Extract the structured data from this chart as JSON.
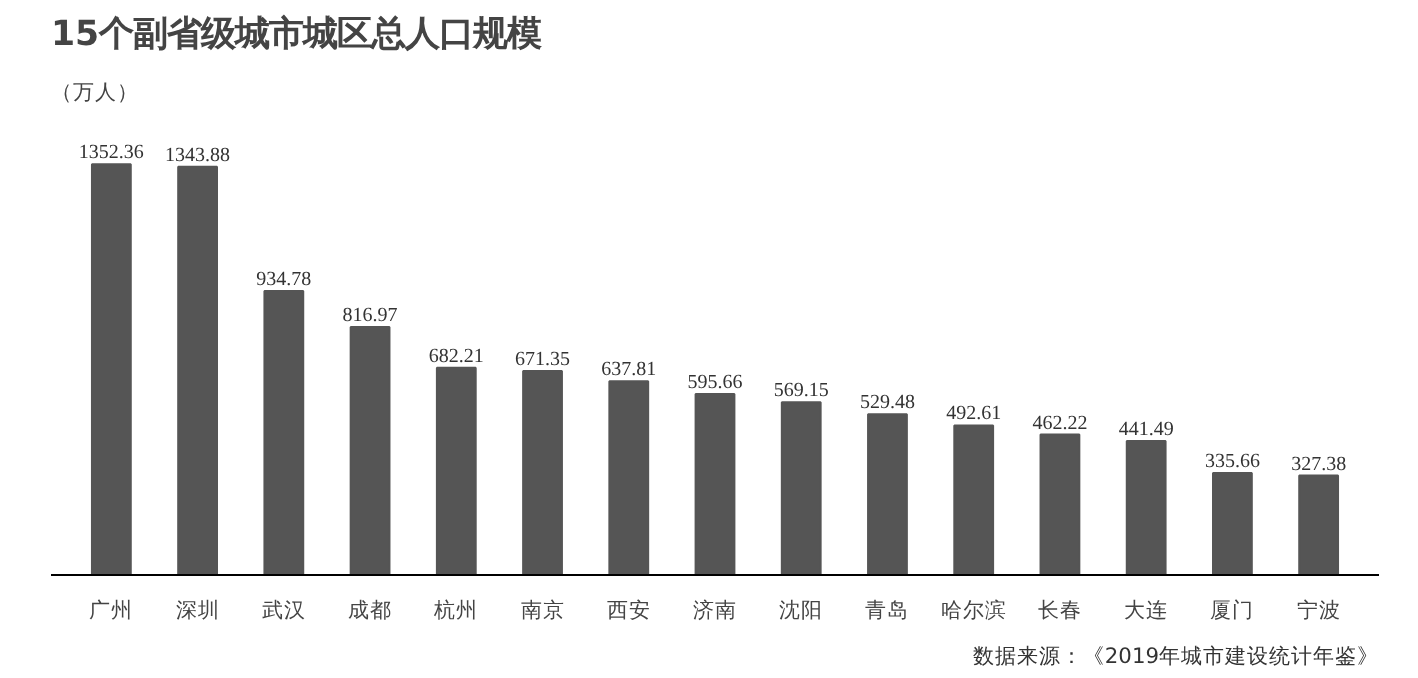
{
  "chart_data": {
    "type": "bar",
    "title": "15个副省级城市城区总人口规模",
    "subtitle": "（万人）",
    "categories": [
      "广州",
      "深圳",
      "武汉",
      "成都",
      "杭州",
      "南京",
      "西安",
      "济南",
      "沈阳",
      "青岛",
      "哈尔滨",
      "长春",
      "大连",
      "厦门",
      "宁波"
    ],
    "values": [
      1352.36,
      1343.88,
      934.78,
      816.97,
      682.21,
      671.35,
      637.81,
      595.66,
      569.15,
      529.48,
      492.61,
      462.22,
      441.49,
      335.66,
      327.38
    ],
    "color": "#555555",
    "data_labels": true,
    "annotations": [
      "数据来源：《2019年城市建设统计年鉴》"
    ]
  }
}
